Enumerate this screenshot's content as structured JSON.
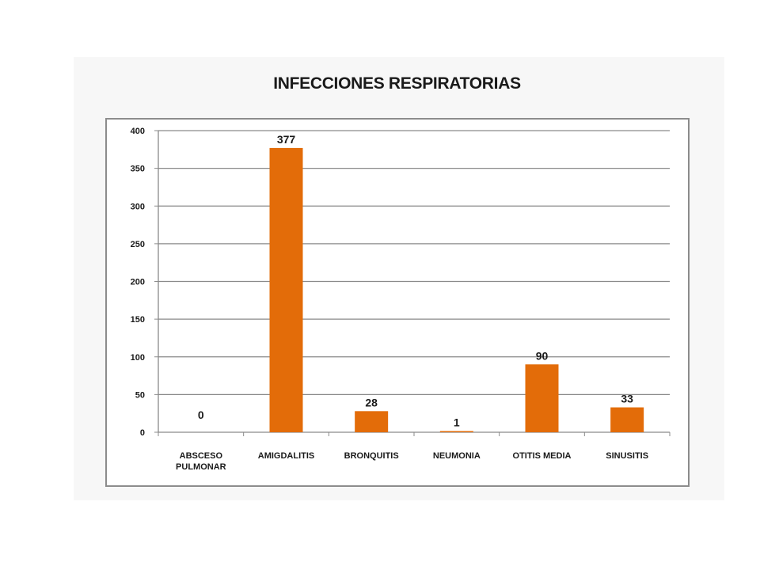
{
  "chart_data": {
    "type": "bar",
    "title": "INFECCIONES RESPIRATORIAS",
    "categories": [
      [
        "ABSCESO",
        "PULMONAR"
      ],
      [
        "AMIGDALITIS"
      ],
      [
        "BRONQUITIS"
      ],
      [
        "NEUMONIA"
      ],
      [
        "OTITIS MEDIA"
      ],
      [
        "SINUSITIS"
      ]
    ],
    "values": [
      0,
      377,
      28,
      1,
      90,
      33
    ],
    "data_labels": [
      "0",
      "377",
      "28",
      "1",
      "90",
      "33"
    ],
    "ylim": [
      0,
      400
    ],
    "yticks": [
      0,
      50,
      100,
      150,
      200,
      250,
      300,
      350,
      400
    ],
    "xlabel": "",
    "ylabel": "",
    "grid": true,
    "legend": "none",
    "bar_color": "#e36c09"
  }
}
